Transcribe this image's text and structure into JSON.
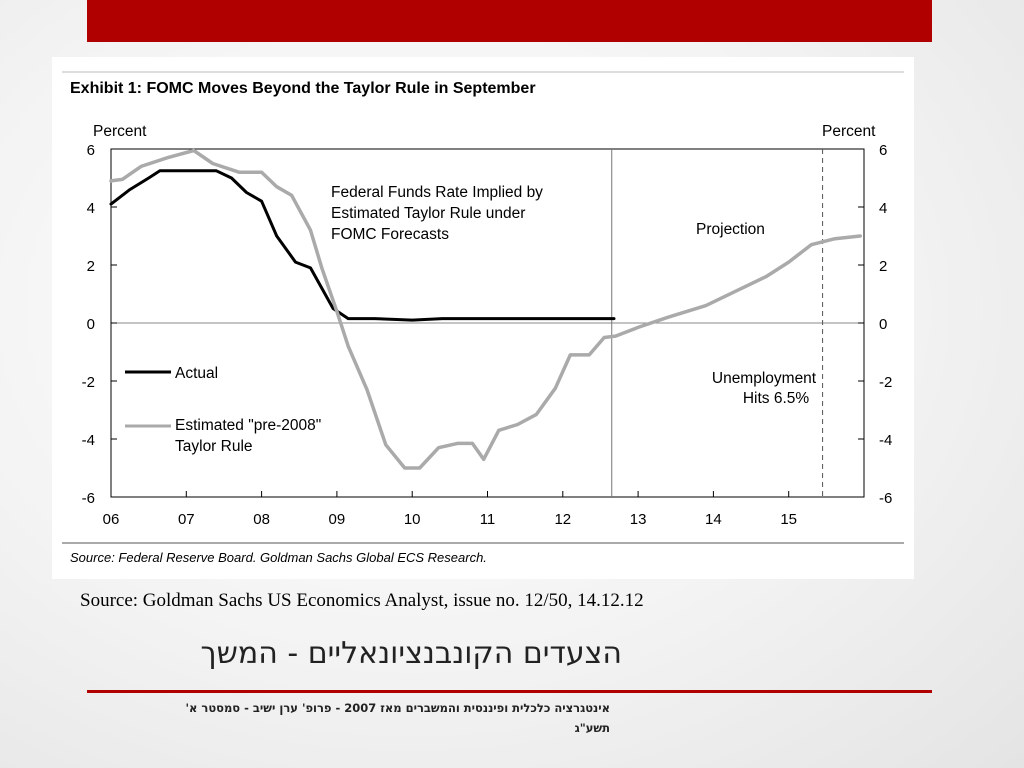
{
  "slide": {
    "accent_color": "#b00000",
    "source_line": "Source: Goldman Sachs US Economics Analyst, issue no. 12/50, 14.12.12",
    "title": "הצעדים הקונבנציונאליים - המשך",
    "footer_line1": "אינטגרציה כלכלית ופיננסית והמשברים מאז 2007 - פרופ' ערן ישיב - סמסטר א'",
    "footer_line2": "תשע\"ג"
  },
  "exhibit": {
    "title": "Exhibit 1: FOMC Moves Beyond the Taylor Rule in September",
    "source_note": "Source: Federal Reserve Board. Goldman Sachs Global ECS Research."
  },
  "chart_data": {
    "type": "line",
    "title": "Exhibit 1: FOMC Moves Beyond the Taylor Rule in September",
    "ylabel_left": "Percent",
    "ylabel_right": "Percent",
    "xlim": [
      2006,
      2016
    ],
    "ylim": [
      -6,
      6
    ],
    "x_tick_labels": [
      "06",
      "07",
      "08",
      "09",
      "10",
      "11",
      "12",
      "13",
      "14",
      "15"
    ],
    "y_tick_labels": [
      "6",
      "4",
      "2",
      "0",
      "-2",
      "-4",
      "-6"
    ],
    "series": [
      {
        "name": "Actual",
        "color": "#000000",
        "x": [
          2006.0,
          2006.25,
          2006.5,
          2006.65,
          2007.0,
          2007.4,
          2007.6,
          2007.8,
          2008.0,
          2008.2,
          2008.45,
          2008.65,
          2008.95,
          2009.15,
          2009.5,
          2010.0,
          2010.4,
          2010.7,
          2011.0,
          2011.5,
          2012.0,
          2012.68
        ],
        "y": [
          4.1,
          4.6,
          5.0,
          5.25,
          5.25,
          5.25,
          5.0,
          4.5,
          4.2,
          3.0,
          2.1,
          1.9,
          0.5,
          0.15,
          0.15,
          0.1,
          0.15,
          0.15,
          0.15,
          0.15,
          0.15,
          0.15
        ]
      },
      {
        "name": "Estimated \"pre-2008\" Taylor Rule",
        "color": "#aaaaaa",
        "x": [
          2006.0,
          2006.15,
          2006.4,
          2006.75,
          2007.1,
          2007.35,
          2007.7,
          2008.0,
          2008.2,
          2008.4,
          2008.65,
          2008.8,
          2009.0,
          2009.15,
          2009.4,
          2009.65,
          2009.9,
          2010.1,
          2010.35,
          2010.6,
          2010.8,
          2010.95,
          2011.15,
          2011.4,
          2011.65,
          2011.9,
          2012.1,
          2012.35,
          2012.55,
          2012.7,
          2013.0,
          2013.4,
          2013.9,
          2014.3,
          2014.7,
          2015.0,
          2015.3,
          2015.6,
          2015.95
        ],
        "y": [
          4.9,
          4.95,
          5.4,
          5.7,
          5.95,
          5.5,
          5.2,
          5.2,
          4.7,
          4.4,
          3.2,
          1.9,
          0.4,
          -0.8,
          -2.3,
          -4.2,
          -5.0,
          -5.0,
          -4.3,
          -4.15,
          -4.15,
          -4.7,
          -3.7,
          -3.5,
          -3.15,
          -2.25,
          -1.1,
          -1.1,
          -0.5,
          -0.45,
          -0.15,
          0.2,
          0.6,
          1.1,
          1.6,
          2.1,
          2.7,
          2.9,
          3.0
        ]
      }
    ],
    "projection_start_x": 2012.65,
    "unemployment_marker_x": 2015.45,
    "annotations": {
      "taylor_box_line1": "Federal Funds Rate Implied by",
      "taylor_box_line2": "Estimated Taylor Rule under",
      "taylor_box_line3": "FOMC Forecasts",
      "projection": "Projection",
      "unemployment_line1": "Unemployment",
      "unemployment_line2": "Hits 6.5%"
    },
    "legend": {
      "actual": "Actual",
      "taylor_line1": "Estimated \"pre-2008\"",
      "taylor_line2": "Taylor Rule"
    },
    "grid": false
  }
}
